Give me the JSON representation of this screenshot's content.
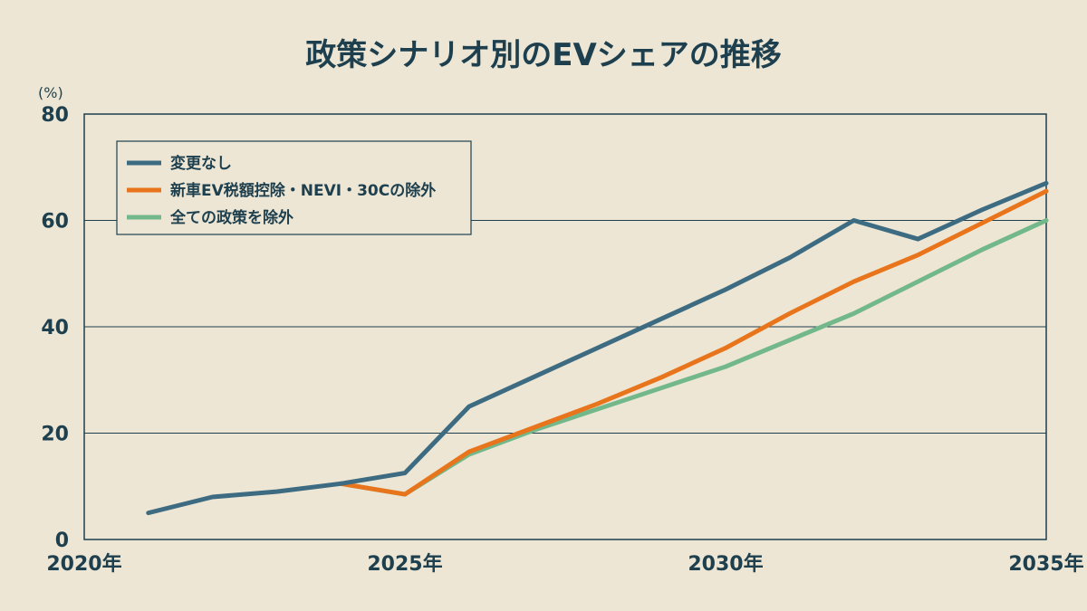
{
  "chart_data": {
    "type": "line",
    "title": "政策シナリオ別のEVシェアの推移",
    "ylabel": "(%)",
    "xlabel": "",
    "xlim": [
      2020,
      2035
    ],
    "ylim": [
      0,
      80
    ],
    "yticks": [
      0,
      20,
      40,
      60,
      80
    ],
    "xticks": [
      {
        "value": 2020,
        "label": "2020年"
      },
      {
        "value": 2025,
        "label": "2025年"
      },
      {
        "value": 2030,
        "label": "2030年"
      },
      {
        "value": 2035,
        "label": "2035年"
      }
    ],
    "grid": true,
    "legend_position": "top-left",
    "series": [
      {
        "name": "変更なし",
        "color": "#3d6b82",
        "x": [
          2021,
          2022,
          2023,
          2024,
          2025,
          2026,
          2027,
          2028,
          2029,
          2030,
          2031,
          2032,
          2033,
          2034,
          2035
        ],
        "y": [
          5,
          8,
          9,
          10.5,
          12.5,
          25,
          30.5,
          36,
          41.5,
          47,
          53,
          60,
          56.5,
          62,
          67
        ]
      },
      {
        "name": "新車EV税額控除・NEVI・30Cの除外",
        "color": "#e8741c",
        "x": [
          2024,
          2025,
          2026,
          2027,
          2028,
          2029,
          2030,
          2031,
          2032,
          2033,
          2034,
          2035
        ],
        "y": [
          10.5,
          8.5,
          16.5,
          21,
          25.5,
          30.5,
          36,
          42.5,
          48.5,
          53.5,
          59.5,
          65.5
        ]
      },
      {
        "name": "全ての政策を除外",
        "color": "#72b88b",
        "x": [
          2024,
          2025,
          2026,
          2027,
          2028,
          2029,
          2030,
          2031,
          2032,
          2033,
          2034,
          2035
        ],
        "y": [
          10.5,
          8.5,
          16,
          20.5,
          24.5,
          28.5,
          32.5,
          37.5,
          42.5,
          48.5,
          54.5,
          60
        ]
      }
    ]
  }
}
